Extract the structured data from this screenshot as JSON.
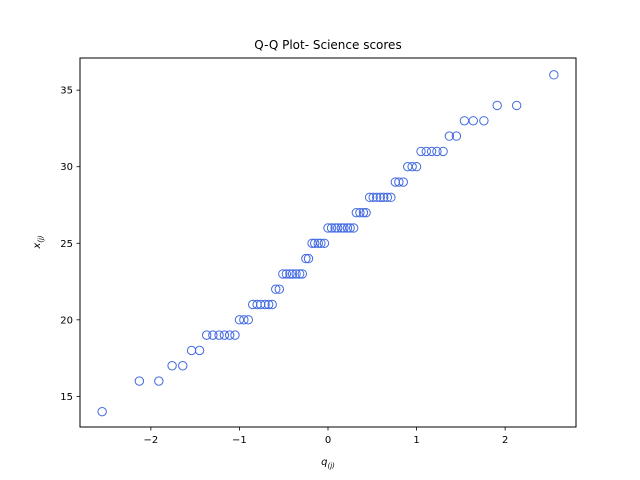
{
  "chart_data": {
    "type": "scatter",
    "title": "Q-Q Plot- Science scores",
    "xlabel": {
      "base": "q",
      "sub": "(j)"
    },
    "ylabel": {
      "base": "x",
      "sub": "(j)"
    },
    "xlim": [
      -2.8,
      2.8
    ],
    "ylim": [
      13.0,
      37.1
    ],
    "xticks": [
      -2,
      -1,
      0,
      1,
      2
    ],
    "xtick_labels": [
      "−2",
      "−1",
      "0",
      "1",
      "2"
    ],
    "yticks": [
      15,
      20,
      25,
      30,
      35
    ],
    "ytick_labels": [
      "15",
      "20",
      "25",
      "30",
      "35"
    ],
    "grid": false,
    "marker": {
      "shape": "hollow-circle",
      "color": "#4169e1"
    },
    "points": [
      [
        -2.55,
        14
      ],
      [
        -2.13,
        16
      ],
      [
        -1.91,
        16
      ],
      [
        -1.76,
        17
      ],
      [
        -1.64,
        17
      ],
      [
        -1.54,
        18
      ],
      [
        -1.45,
        18
      ],
      [
        -1.37,
        19
      ],
      [
        -1.3,
        19
      ],
      [
        -1.23,
        19
      ],
      [
        -1.17,
        19
      ],
      [
        -1.11,
        19
      ],
      [
        -1.05,
        19
      ],
      [
        -1.0,
        20
      ],
      [
        -0.95,
        20
      ],
      [
        -0.9,
        20
      ],
      [
        -0.85,
        21
      ],
      [
        -0.8,
        21
      ],
      [
        -0.76,
        21
      ],
      [
        -0.71,
        21
      ],
      [
        -0.67,
        21
      ],
      [
        -0.63,
        21
      ],
      [
        -0.59,
        22
      ],
      [
        -0.55,
        22
      ],
      [
        -0.51,
        23
      ],
      [
        -0.47,
        23
      ],
      [
        -0.43,
        23
      ],
      [
        -0.4,
        23
      ],
      [
        -0.36,
        23
      ],
      [
        -0.32,
        23
      ],
      [
        -0.29,
        23
      ],
      [
        -0.25,
        24
      ],
      [
        -0.22,
        24
      ],
      [
        -0.18,
        25
      ],
      [
        -0.15,
        25
      ],
      [
        -0.11,
        25
      ],
      [
        -0.08,
        25
      ],
      [
        -0.04,
        25
      ],
      [
        0.0,
        26
      ],
      [
        0.04,
        26
      ],
      [
        0.08,
        26
      ],
      [
        0.11,
        26
      ],
      [
        0.15,
        26
      ],
      [
        0.18,
        26
      ],
      [
        0.22,
        26
      ],
      [
        0.25,
        26
      ],
      [
        0.29,
        26
      ],
      [
        0.32,
        27
      ],
      [
        0.36,
        27
      ],
      [
        0.4,
        27
      ],
      [
        0.43,
        27
      ],
      [
        0.47,
        28
      ],
      [
        0.51,
        28
      ],
      [
        0.55,
        28
      ],
      [
        0.59,
        28
      ],
      [
        0.63,
        28
      ],
      [
        0.67,
        28
      ],
      [
        0.71,
        28
      ],
      [
        0.76,
        29
      ],
      [
        0.8,
        29
      ],
      [
        0.85,
        29
      ],
      [
        0.9,
        30
      ],
      [
        0.95,
        30
      ],
      [
        1.0,
        30
      ],
      [
        1.05,
        31
      ],
      [
        1.11,
        31
      ],
      [
        1.17,
        31
      ],
      [
        1.23,
        31
      ],
      [
        1.3,
        31
      ],
      [
        1.37,
        32
      ],
      [
        1.45,
        32
      ],
      [
        1.54,
        33
      ],
      [
        1.64,
        33
      ],
      [
        1.76,
        33
      ],
      [
        1.91,
        34
      ],
      [
        2.13,
        34
      ],
      [
        2.55,
        36
      ]
    ]
  }
}
